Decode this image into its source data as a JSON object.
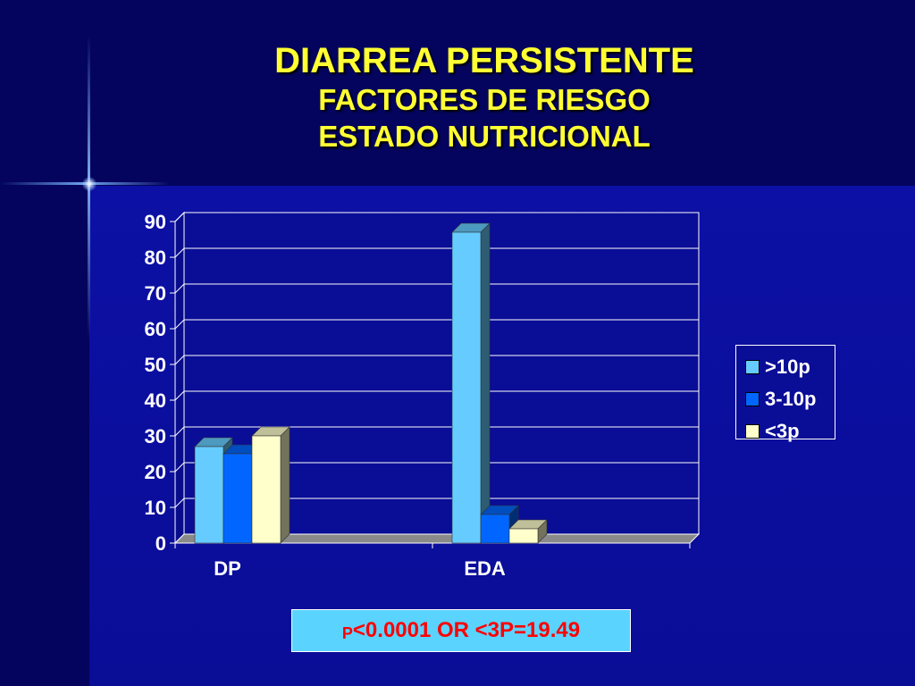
{
  "slide": {
    "title_line1": "DIARREA PERSISTENTE",
    "title_line2": "FACTORES DE RIESGO",
    "title_line3": "ESTADO NUTRICIONAL",
    "note_prefix": "P",
    "note_text": "<0.0001 OR <3P=19.49",
    "colors": {
      "title": "#ffff33",
      "background": "#0a0a8c",
      "note_bg": "#5bd3ff",
      "note_text": "#ff0000"
    }
  },
  "chart_data": {
    "type": "bar",
    "style": "3d-clustered-column",
    "title": "",
    "xlabel": "",
    "ylabel": "",
    "categories": [
      "DP",
      "EDA"
    ],
    "series": [
      {
        "name": ">10p",
        "values": [
          27,
          87
        ],
        "color": "#66ccff"
      },
      {
        "name": "3-10p",
        "values": [
          25,
          8
        ],
        "color": "#0066ff"
      },
      {
        "name": "<3p",
        "values": [
          30,
          4
        ],
        "color": "#ffffcc"
      }
    ],
    "ylim": [
      0,
      90
    ],
    "yticks": [
      0,
      10,
      20,
      30,
      40,
      50,
      60,
      70,
      80,
      90
    ],
    "grid": true,
    "legend_position": "right"
  }
}
